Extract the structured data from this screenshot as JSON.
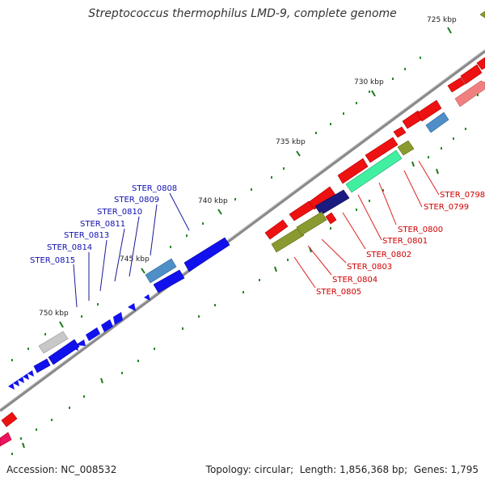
{
  "title": "Streptococcus thermophilus LMD-9, complete genome",
  "footer": {
    "accession_label": "Accession:",
    "accession": "NC_008532",
    "topology_label": "Topology:",
    "topology": "circular",
    "length_label": "Length:",
    "length": "1,856,368 bp",
    "genes_label": "Genes:",
    "genes": "1,795"
  },
  "ruler_labels": [
    "725 kbp",
    "730 kbp",
    "735 kbp",
    "740 kbp",
    "745 kbp",
    "750 kbp"
  ],
  "genes_forward_labels": [
    "STER_0798",
    "STER_0799",
    "STER_0800",
    "STER_0801",
    "STER_0802",
    "STER_0803",
    "STER_0804",
    "STER_0805"
  ],
  "genes_reverse_labels": [
    "STER_0808",
    "STER_0809",
    "STER_0810",
    "STER_0811",
    "STER_0813",
    "STER_0814",
    "STER_0815"
  ],
  "colors": {
    "backbone": "#888888",
    "forward_label": "#d00000",
    "reverse_label": "#1010b0",
    "forward_gene": "#ee1111",
    "reverse_gene": "#1111ee",
    "tick_dot": "#2a8a2a",
    "major_tick": "#1f7a1f"
  }
}
